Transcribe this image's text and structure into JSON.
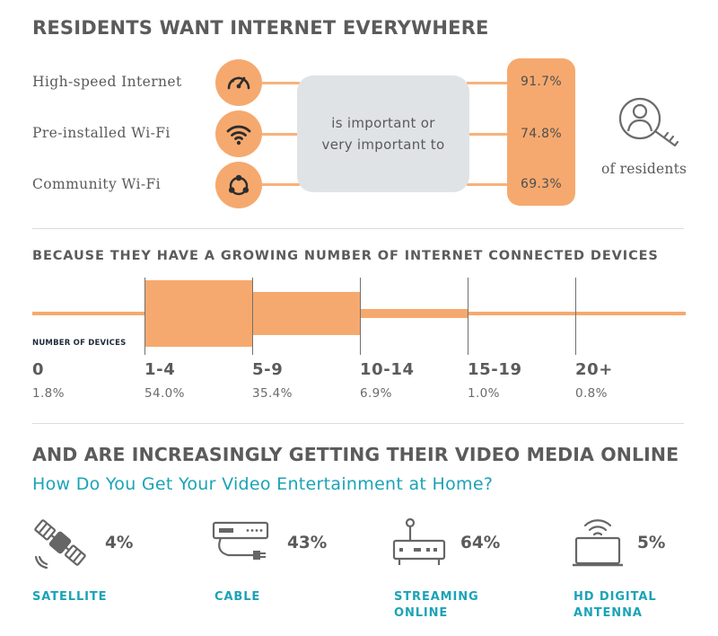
{
  "section1": {
    "title": "RESIDENTS WANT INTERNET EVERYWHERE",
    "middle_text": [
      "is important or",
      "very important to"
    ],
    "suffix": "of residents",
    "items": [
      {
        "label": "High-speed Internet",
        "value": "91.7%",
        "icon": "speedometer-icon"
      },
      {
        "label": "Pre-installed Wi-Fi",
        "value": "74.8%",
        "icon": "wifi-icon"
      },
      {
        "label": "Community Wi-Fi",
        "value": "69.3%",
        "icon": "network-icon"
      }
    ]
  },
  "section2": {
    "title": "BECAUSE THEY HAVE A GROWING NUMBER OF INTERNET CONNECTED DEVICES",
    "axis_label": "NUMBER OF DEVICES"
  },
  "section3": {
    "title": "AND ARE INCREASINGLY GETTING THEIR VIDEO MEDIA ONLINE",
    "subtitle": "How Do You Get Your Video Entertainment at Home?",
    "items": [
      {
        "label": [
          "SATELLITE"
        ],
        "value": "4%",
        "icon": "satellite-icon"
      },
      {
        "label": [
          "CABLE"
        ],
        "value": "43%",
        "icon": "cable-box-icon"
      },
      {
        "label": [
          "STREAMING",
          "ONLINE"
        ],
        "value": "64%",
        "icon": "router-icon"
      },
      {
        "label": [
          "HD DIGITAL",
          "ANTENNA"
        ],
        "value": "5%",
        "icon": "antenna-icon"
      }
    ]
  },
  "colors": {
    "orange": "#f6a96e",
    "teal": "#1ba3b6",
    "gray_box": "#dfe3e6",
    "text": "#5b5b5b"
  },
  "chart_data": {
    "type": "bar",
    "categories": [
      "0",
      "1-4",
      "5-9",
      "10-14",
      "15-19",
      "20+"
    ],
    "values": [
      1.8,
      54.0,
      35.4,
      6.9,
      1.0,
      0.8
    ],
    "value_labels": [
      "1.8%",
      "54.0%",
      "35.4%",
      "6.9%",
      "1.0%",
      "0.8%"
    ],
    "xlabel": "NUMBER OF DEVICES",
    "ylim": [
      0,
      54.0
    ]
  }
}
